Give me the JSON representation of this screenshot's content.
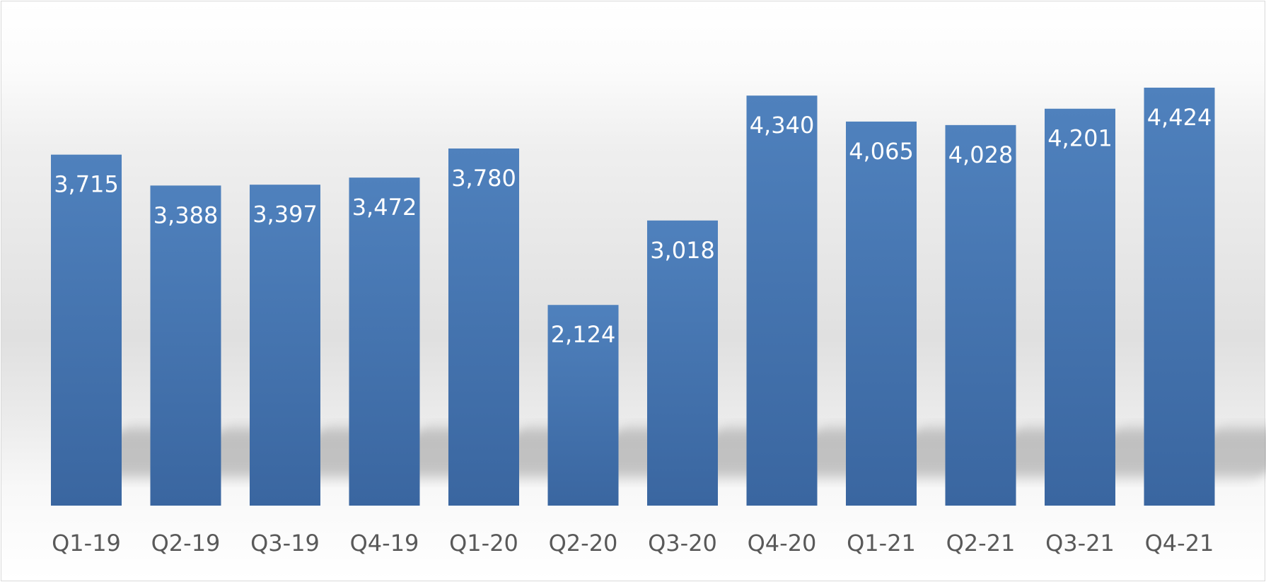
{
  "chart_data": {
    "type": "bar",
    "title": "",
    "xlabel": "",
    "ylabel": "",
    "categories": [
      "Q1-19",
      "Q2-19",
      "Q3-19",
      "Q4-19",
      "Q1-20",
      "Q2-20",
      "Q3-20",
      "Q4-20",
      "Q1-21",
      "Q2-21",
      "Q3-21",
      "Q4-21"
    ],
    "values": [
      3715,
      3388,
      3397,
      3472,
      3780,
      2124,
      3018,
      4340,
      4065,
      4028,
      4201,
      4424
    ],
    "value_labels": [
      "3,715",
      "3,388",
      "3,397",
      "3,472",
      "3,780",
      "2,124",
      "3,018",
      "4,340",
      "4,065",
      "4,028",
      "4,201",
      "4,424"
    ],
    "ylim": [
      0,
      5000
    ],
    "grid": false,
    "legend": "none",
    "data_labels": "inside-top",
    "colors": {
      "bar_top": "#4f81bd",
      "bar_bottom": "#3a66a0",
      "label_text": "#ffffff",
      "tick_text": "#595959",
      "border": "#d9d9d9"
    }
  }
}
